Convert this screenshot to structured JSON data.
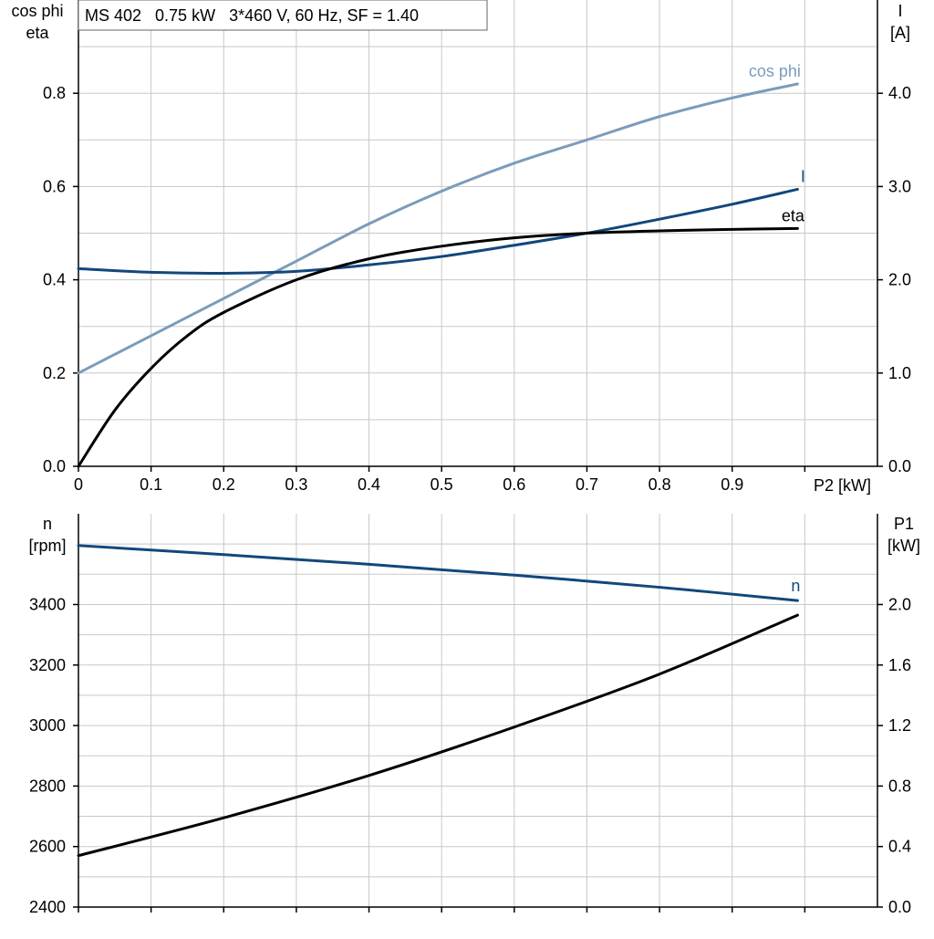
{
  "chart_data": [
    {
      "type": "line",
      "title": "MS 402   0.75 kW   3*460 V, 60 Hz, SF = 1.40",
      "xlabel": "P2 [kW]",
      "ylabel_left": [
        "cos phi",
        "eta"
      ],
      "ylabel_right": [
        "I",
        "[A]"
      ],
      "xlim": [
        0,
        1.1
      ],
      "ylim_left": [
        0,
        1.0
      ],
      "ylim_right": [
        0,
        5.0
      ],
      "x_ticks": [
        "0",
        "0.1",
        "0.2",
        "0.3",
        "0.4",
        "0.5",
        "0.6",
        "0.7",
        "0.8",
        "0.9"
      ],
      "y_ticks_left": [
        "0.0",
        "0.2",
        "0.4",
        "0.6",
        "0.8"
      ],
      "y_ticks_right": [
        "0.0",
        "1.0",
        "2.0",
        "3.0",
        "4.0"
      ],
      "grid": true,
      "series": [
        {
          "name": "cos phi",
          "axis": "left",
          "color": "#7b9cba",
          "x": [
            0,
            0.1,
            0.2,
            0.3,
            0.4,
            0.5,
            0.6,
            0.7,
            0.8,
            0.9,
            0.99
          ],
          "values": [
            0.2,
            0.28,
            0.36,
            0.44,
            0.52,
            0.59,
            0.65,
            0.7,
            0.75,
            0.79,
            0.82
          ]
        },
        {
          "name": "I",
          "axis": "right",
          "color": "#12477c",
          "x": [
            0,
            0.1,
            0.2,
            0.3,
            0.4,
            0.5,
            0.6,
            0.7,
            0.8,
            0.9,
            0.99
          ],
          "values": [
            2.12,
            2.08,
            2.07,
            2.09,
            2.16,
            2.25,
            2.37,
            2.5,
            2.65,
            2.81,
            2.97
          ]
        },
        {
          "name": "eta",
          "axis": "left",
          "color": "#000000",
          "x": [
            0,
            0.05,
            0.1,
            0.15,
            0.2,
            0.3,
            0.4,
            0.5,
            0.6,
            0.7,
            0.8,
            0.9,
            0.99
          ],
          "values": [
            0.0,
            0.12,
            0.21,
            0.28,
            0.33,
            0.4,
            0.445,
            0.472,
            0.49,
            0.5,
            0.505,
            0.508,
            0.51
          ]
        }
      ]
    },
    {
      "type": "line",
      "ylabel_left": [
        "n",
        "[rpm]"
      ],
      "ylabel_right": [
        "P1",
        "[kW]"
      ],
      "xlim": [
        0,
        1.1
      ],
      "ylim_left": [
        2400,
        3700
      ],
      "ylim_right": [
        0,
        2.6
      ],
      "y_ticks_left": [
        "2400",
        "2600",
        "2800",
        "3000",
        "3200",
        "3400"
      ],
      "y_ticks_right": [
        "0.0",
        "0.4",
        "0.8",
        "1.2",
        "1.6",
        "2.0"
      ],
      "grid": true,
      "series": [
        {
          "name": "n",
          "axis": "left",
          "color": "#12477c",
          "x": [
            0,
            0.2,
            0.4,
            0.6,
            0.8,
            0.99
          ],
          "values": [
            3595,
            3565,
            3533,
            3497,
            3457,
            3413
          ]
        },
        {
          "axis": "right",
          "color": "#000000",
          "x": [
            0,
            0.2,
            0.4,
            0.6,
            0.8,
            0.99
          ],
          "values": [
            0.34,
            0.59,
            0.87,
            1.19,
            1.54,
            1.93
          ]
        }
      ]
    }
  ]
}
